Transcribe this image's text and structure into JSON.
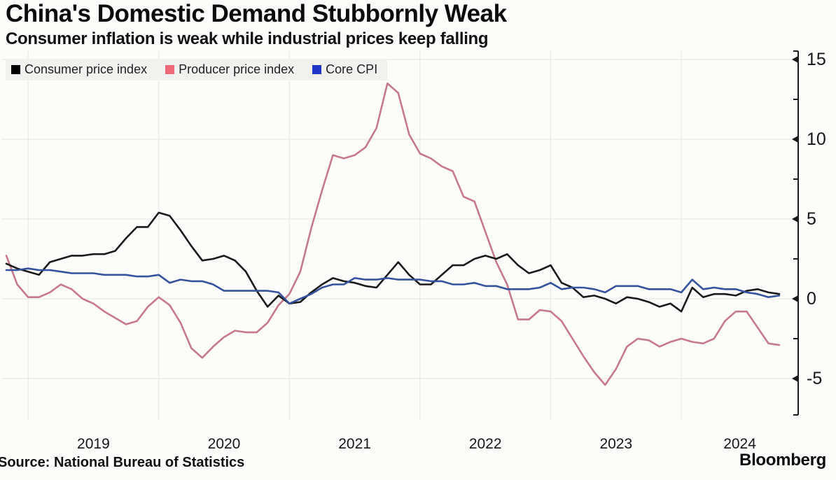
{
  "header": {
    "title": "China's Domestic Demand Stubbornly Weak",
    "subtitle": "Consumer inflation is weak while industrial prices keep falling"
  },
  "footer": {
    "source": "Source: National Bureau of Statistics",
    "brand": "Bloomberg"
  },
  "chart_data": {
    "type": "line",
    "x_unit": "month",
    "x_start": "2018-11",
    "x_end": "2024-10",
    "year_labels": [
      "2019",
      "2020",
      "2021",
      "2022",
      "2023",
      "2024"
    ],
    "y_ticks": [
      15,
      10,
      5,
      0,
      -5
    ],
    "y_minor_ticks": [
      12.5,
      7.5,
      2.5,
      -2.5
    ],
    "ylim": [
      -7.3,
      15.5
    ],
    "y_axis_side": "right",
    "grid": true,
    "legend_position": "top-left",
    "background": "#fcfcfb",
    "grid_color": "#e8e8e6",
    "axis_color": "#1a1a1a",
    "series": [
      {
        "name": "Consumer price index",
        "swatch": "#000000",
        "color": "#1a1a1a",
        "values": [
          2.2,
          1.9,
          1.7,
          1.5,
          2.3,
          2.5,
          2.7,
          2.7,
          2.8,
          2.8,
          3.0,
          3.8,
          4.5,
          4.5,
          5.4,
          5.2,
          4.3,
          3.3,
          2.4,
          2.5,
          2.7,
          2.4,
          1.7,
          0.5,
          -0.5,
          0.2,
          -0.3,
          -0.2,
          0.4,
          0.9,
          1.3,
          1.1,
          1.0,
          0.8,
          0.7,
          1.5,
          2.3,
          1.5,
          0.9,
          0.9,
          1.5,
          2.1,
          2.1,
          2.5,
          2.7,
          2.5,
          2.8,
          2.1,
          1.6,
          1.8,
          2.1,
          1.0,
          0.7,
          0.1,
          0.2,
          0.0,
          -0.3,
          0.1,
          0.0,
          -0.2,
          -0.5,
          -0.3,
          -0.8,
          0.7,
          0.1,
          0.3,
          0.3,
          0.2,
          0.5,
          0.6,
          0.4,
          0.3
        ]
      },
      {
        "name": "Producer price index",
        "swatch": "#ee6a78",
        "color": "#c5798a",
        "values": [
          2.7,
          0.9,
          0.1,
          0.1,
          0.4,
          0.9,
          0.6,
          0.0,
          -0.3,
          -0.8,
          -1.2,
          -1.6,
          -1.4,
          -0.5,
          0.1,
          -0.4,
          -1.5,
          -3.1,
          -3.7,
          -3.0,
          -2.4,
          -2.0,
          -2.1,
          -2.1,
          -1.5,
          -0.4,
          0.3,
          1.7,
          4.4,
          6.8,
          9.0,
          8.8,
          9.0,
          9.5,
          10.7,
          13.5,
          12.9,
          10.3,
          9.1,
          8.8,
          8.3,
          8.0,
          6.4,
          6.1,
          4.2,
          2.3,
          0.9,
          -1.3,
          -1.3,
          -0.7,
          -0.8,
          -1.4,
          -2.5,
          -3.6,
          -4.6,
          -5.4,
          -4.4,
          -3.0,
          -2.5,
          -2.6,
          -3.0,
          -2.7,
          -2.5,
          -2.7,
          -2.8,
          -2.5,
          -1.4,
          -0.8,
          -0.8,
          -1.8,
          -2.8,
          -2.9
        ]
      },
      {
        "name": "Core CPI",
        "swatch": "#1f36c8",
        "color": "#35529e",
        "values": [
          1.8,
          1.8,
          1.9,
          1.8,
          1.8,
          1.7,
          1.6,
          1.6,
          1.6,
          1.5,
          1.5,
          1.5,
          1.4,
          1.4,
          1.5,
          1.0,
          1.2,
          1.1,
          1.1,
          0.9,
          0.5,
          0.5,
          0.5,
          0.5,
          0.5,
          0.4,
          -0.3,
          0.0,
          0.3,
          0.7,
          0.9,
          0.9,
          1.3,
          1.2,
          1.2,
          1.3,
          1.2,
          1.2,
          1.2,
          1.1,
          1.1,
          0.9,
          0.9,
          1.0,
          0.8,
          0.8,
          0.6,
          0.6,
          0.6,
          0.7,
          1.0,
          0.6,
          0.7,
          0.7,
          0.6,
          0.4,
          0.8,
          0.8,
          0.8,
          0.6,
          0.6,
          0.6,
          0.4,
          1.2,
          0.6,
          0.7,
          0.6,
          0.6,
          0.4,
          0.3,
          0.1,
          0.2
        ]
      }
    ]
  }
}
